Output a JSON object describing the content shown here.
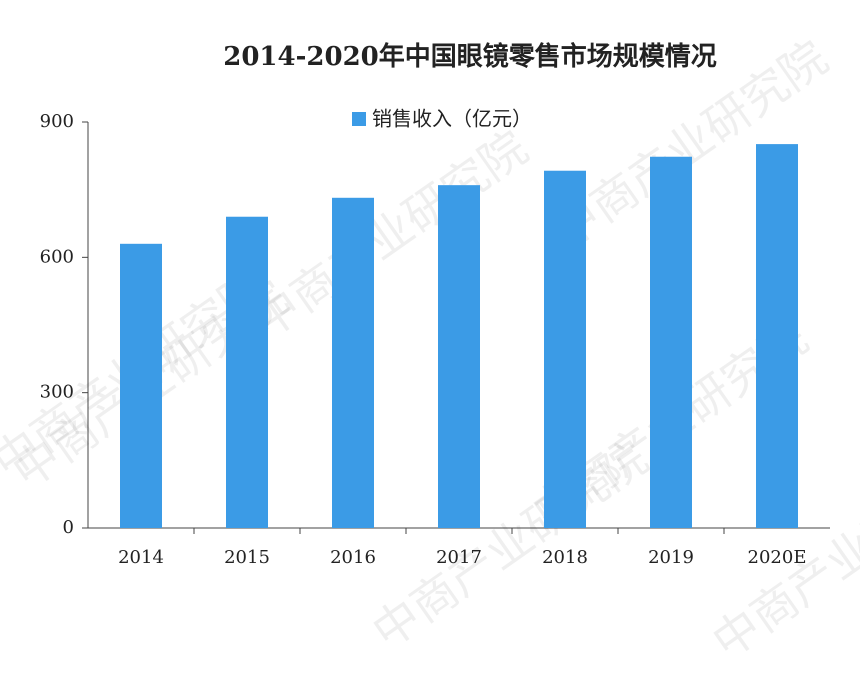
{
  "chart_data": {
    "type": "bar",
    "title": "2014-2020年中国眼镜零售市场规模情况",
    "categories": [
      "2014",
      "2015",
      "2016",
      "2017",
      "2018",
      "2019",
      "2020E"
    ],
    "series": [
      {
        "name": "销售收入（亿元）",
        "color": "#3b9be6",
        "values": [
          630,
          690,
          732,
          760,
          792,
          823,
          851
        ]
      }
    ],
    "ylim": [
      0,
      900
    ],
    "yticks": [
      0,
      300,
      600,
      900
    ],
    "grid": false,
    "legend": "top",
    "watermark": "中商产业研究院"
  }
}
